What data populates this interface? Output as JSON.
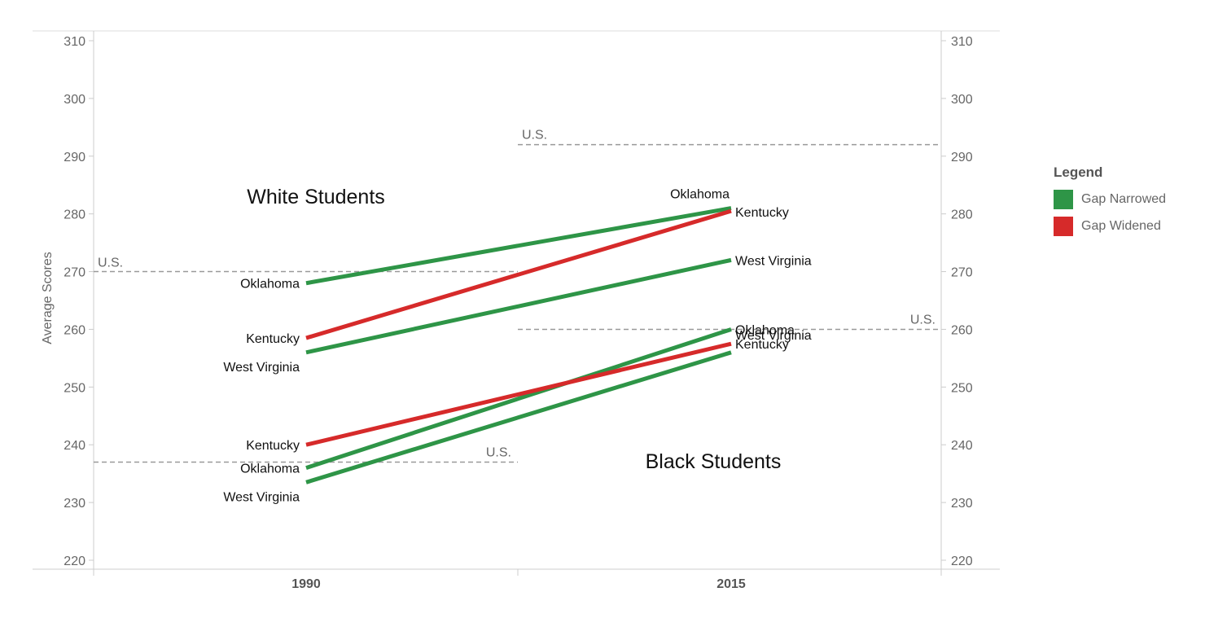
{
  "chart_data": {
    "type": "line",
    "ylabel": "Average Scores",
    "ylim": [
      219,
      311
    ],
    "yticks": [
      220,
      230,
      240,
      250,
      260,
      270,
      280,
      290,
      300,
      310
    ],
    "categories": [
      "1990",
      "2015"
    ],
    "groups": [
      {
        "title": "White Students",
        "us_label": "U.S.",
        "us_1990": 270,
        "us_2015": 292
      },
      {
        "title": "Black Students",
        "us_label": "U.S.",
        "us_1990": 237,
        "us_2015": 260
      }
    ],
    "series": [
      {
        "name": "Oklahoma",
        "group": 0,
        "category": "Gap Narrowed",
        "values": [
          268,
          281
        ]
      },
      {
        "name": "Kentucky",
        "group": 0,
        "category": "Gap Widened",
        "values": [
          258.5,
          280.5
        ]
      },
      {
        "name": "West Virginia",
        "group": 0,
        "category": "Gap Narrowed",
        "values": [
          256,
          272
        ]
      },
      {
        "name": "Oklahoma",
        "group": 1,
        "category": "Gap Narrowed",
        "values": [
          236,
          260
        ]
      },
      {
        "name": "Kentucky",
        "group": 1,
        "category": "Gap Widened",
        "values": [
          240,
          257.5
        ]
      },
      {
        "name": "West Virginia",
        "group": 1,
        "category": "Gap Narrowed",
        "values": [
          233.5,
          256
        ]
      }
    ],
    "legend": {
      "title": "Legend",
      "position": "right",
      "items": [
        {
          "label": "Gap Narrowed",
          "color": "#2e9547"
        },
        {
          "label": "Gap Widened",
          "color": "#d62a2a"
        }
      ]
    },
    "grid": false
  }
}
